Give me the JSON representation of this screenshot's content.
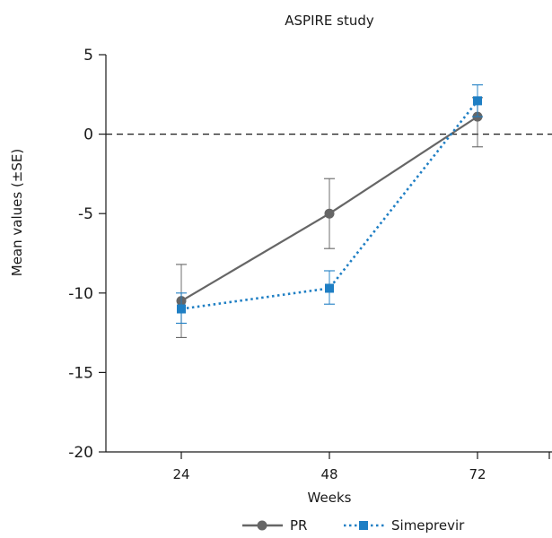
{
  "chart_data": {
    "type": "line",
    "title": "ASPIRE study",
    "xlabel": "Weeks",
    "ylabel": "Mean values (±SE)",
    "categories": [
      "24",
      "48",
      "72"
    ],
    "x": [
      24,
      48,
      72
    ],
    "ylim": [
      -20,
      5
    ],
    "yticks": [
      5,
      0,
      -5,
      -10,
      -15,
      -20
    ],
    "ytick_labels": [
      "5",
      "0",
      "-5",
      "-10",
      "-15",
      "-20"
    ],
    "reference_line": {
      "y": 0,
      "style": "dashed"
    },
    "grid": false,
    "legend_position": "bottom-center",
    "series": [
      {
        "name": "PR",
        "color": "#666666",
        "marker": "circle",
        "line_style": "solid",
        "values": [
          -10.5,
          -5.0,
          1.1
        ],
        "se_upper": [
          -8.2,
          -2.8,
          2.3
        ],
        "se_lower": [
          -12.8,
          -7.2,
          -0.8
        ]
      },
      {
        "name": "Simeprevir",
        "color": "#1f7fc4",
        "marker": "square",
        "line_style": "dotted",
        "values": [
          -11.0,
          -9.7,
          2.1
        ],
        "se_upper": [
          -10.0,
          -8.6,
          3.1
        ],
        "se_lower": [
          -11.9,
          -10.7,
          1.1
        ]
      }
    ]
  }
}
